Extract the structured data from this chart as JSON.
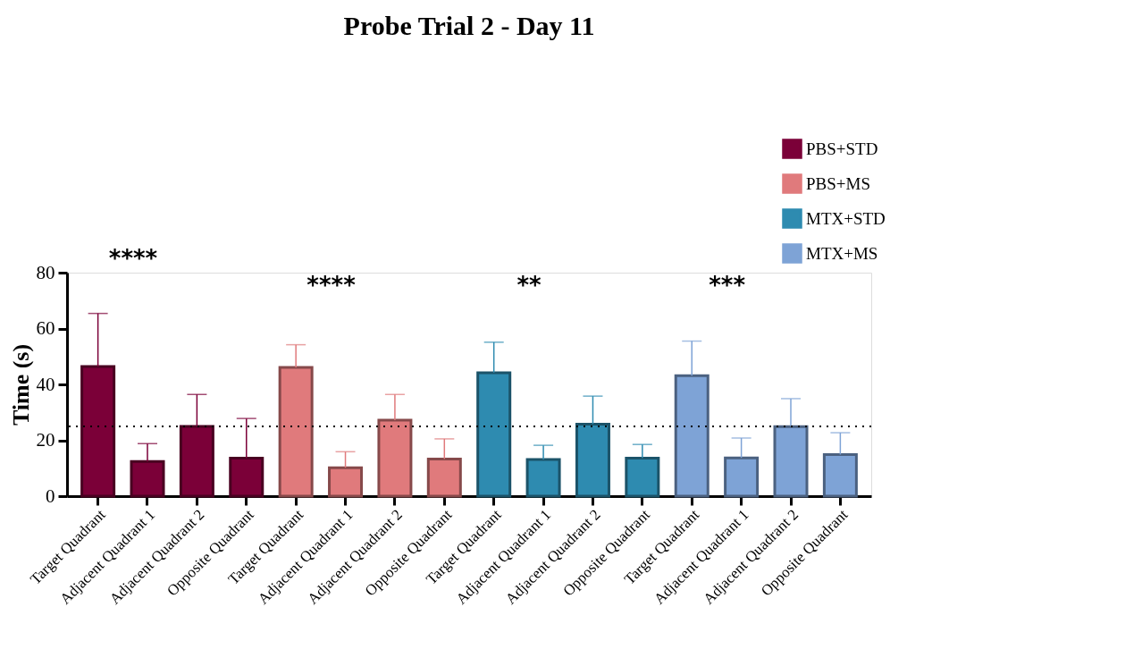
{
  "chart_data": {
    "type": "bar",
    "title": "Probe Trial 2 - Day 11",
    "ylabel": "Time (s)",
    "categories": [
      "Target Quadrant",
      "Adjacent Quadrant 1",
      "Adjacent Quadrant 2",
      "Opposite Quadrant",
      "Target Quadrant",
      "Adjacent Quadrant 1",
      "Adjacent Quadrant 2",
      "Opposite Quadrant",
      "Target Quadrant",
      "Adjacent Quadrant 1",
      "Adjacent Quadrant 2",
      "Opposite Quadrant",
      "Target Quadrant",
      "Adjacent Quadrant 1",
      "Adjacent Quadrant 2",
      "Opposite Quadrant"
    ],
    "series": [
      {
        "name": "PBS+STD",
        "color": "#7b0038",
        "values": [
          46.4,
          12.4,
          25.0,
          13.6,
          null,
          null,
          null,
          null,
          null,
          null,
          null,
          null,
          null,
          null,
          null,
          null
        ],
        "errors": [
          [
            46.4,
            65.4
          ],
          [
            12.4,
            18.8
          ],
          [
            25.0,
            36.4
          ],
          [
            13.6,
            27.8
          ],
          null,
          null,
          null,
          null,
          null,
          null,
          null,
          null,
          null,
          null,
          null,
          null
        ]
      },
      {
        "name": "PBS+MS",
        "color": "#e07a7c",
        "values": [
          null,
          null,
          null,
          null,
          46.1,
          10.2,
          27.2,
          13.3,
          null,
          null,
          null,
          null,
          null,
          null,
          null,
          null
        ],
        "errors": [
          null,
          null,
          null,
          null,
          [
            46.1,
            54.2
          ],
          [
            10.2,
            15.9
          ],
          [
            27.2,
            36.4
          ],
          [
            13.3,
            20.5
          ],
          null,
          null,
          null,
          null,
          null,
          null,
          null,
          null
        ]
      },
      {
        "name": "MTX+STD",
        "color": "#2e8bb0",
        "values": [
          null,
          null,
          null,
          null,
          null,
          null,
          null,
          null,
          44.2,
          13.1,
          25.8,
          13.6,
          null,
          null,
          null,
          null
        ],
        "errors": [
          null,
          null,
          null,
          null,
          null,
          null,
          null,
          null,
          [
            44.2,
            55.1
          ],
          [
            13.1,
            18.2
          ],
          [
            25.8,
            35.8
          ],
          [
            13.6,
            18.5
          ],
          null,
          null,
          null,
          null
        ]
      },
      {
        "name": "MTX+MS",
        "color": "#7ea3d6",
        "values": [
          null,
          null,
          null,
          null,
          null,
          null,
          null,
          null,
          null,
          null,
          null,
          null,
          43.1,
          13.7,
          24.9,
          14.9
        ],
        "errors": [
          null,
          null,
          null,
          null,
          null,
          null,
          null,
          null,
          null,
          null,
          null,
          null,
          [
            43.1,
            55.5
          ],
          [
            13.7,
            20.8
          ],
          [
            24.9,
            34.9
          ],
          [
            14.9,
            22.7
          ]
        ]
      }
    ],
    "ylim": [
      0,
      80
    ],
    "yticks": [
      0,
      20,
      40,
      60,
      80
    ],
    "ref_lines": [
      {
        "axis": "y",
        "value": 25,
        "line_style": "dotted",
        "color": "#000000"
      }
    ],
    "annotations": [
      "****",
      "****",
      "**",
      "***"
    ],
    "legend": "top right",
    "grid": false
  }
}
